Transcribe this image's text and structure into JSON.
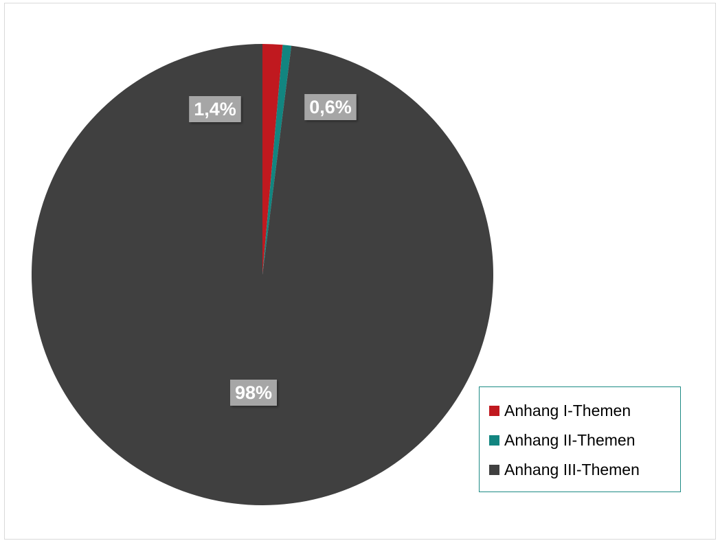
{
  "chart_data": {
    "type": "pie",
    "title": "",
    "slices": [
      {
        "name": "Anhang I-Themen",
        "value": 1.4,
        "label": "1,4%",
        "color": "#c0191f"
      },
      {
        "name": "Anhang II-Themen",
        "value": 0.6,
        "label": "0,6%",
        "color": "#128580"
      },
      {
        "name": "Anhang III-Themen",
        "value": 98,
        "label": "98%",
        "color": "#404040"
      }
    ],
    "legend": {
      "position": "bottom-right",
      "entries": [
        "Anhang I-Themen",
        "Anhang II-Themen",
        "Anhang III-Themen"
      ]
    },
    "label_box_color": "#a6a6a6",
    "legend_border_color": "#1b8a84"
  }
}
